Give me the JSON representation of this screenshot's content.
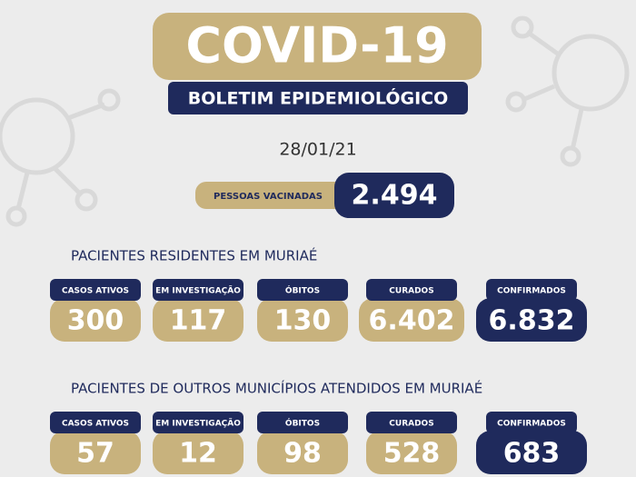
{
  "header": {
    "title": "COVID-19",
    "subtitle": "BOLETIM EPIDEMIOLÓGICO",
    "date": "28/01/21"
  },
  "vaccination": {
    "label": "PESSOAS VACINADAS",
    "value": "2.494"
  },
  "sections": [
    {
      "title": "PACIENTES RESIDENTES EM MURIAÉ",
      "items": [
        {
          "label": "CASOS ATIVOS",
          "value": "300"
        },
        {
          "label": "EM INVESTIGAÇÃO",
          "value": "117"
        },
        {
          "label": "ÓBITOS",
          "value": "130"
        },
        {
          "label": "CURADOS",
          "value": "6.402"
        },
        {
          "label": "CONFIRMADOS",
          "value": "6.832"
        }
      ]
    },
    {
      "title": "PACIENTES DE OUTROS MUNICÍPIOS ATENDIDOS EM MURIAÉ",
      "items": [
        {
          "label": "CASOS ATIVOS",
          "value": "57"
        },
        {
          "label": "EM INVESTIGAÇÃO",
          "value": "12"
        },
        {
          "label": "ÓBITOS",
          "value": "98"
        },
        {
          "label": "CURADOS",
          "value": "528"
        },
        {
          "label": "CONFIRMADOS",
          "value": "683"
        }
      ]
    }
  ]
}
